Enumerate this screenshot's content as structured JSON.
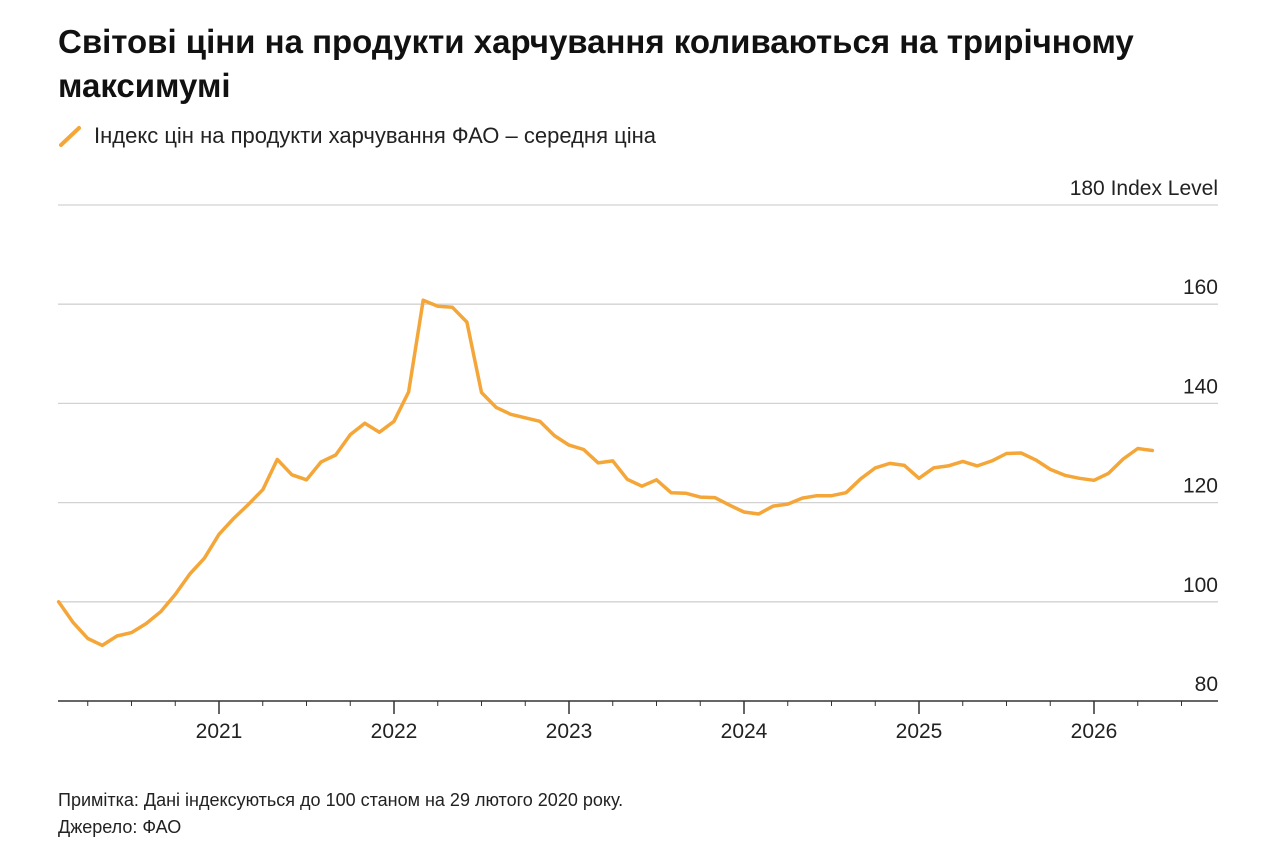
{
  "title": "Світові ціни на продукти харчування коливаються на трирічному максимумі",
  "legend": {
    "label": "Індекс цін на продукти харчування ФАО – середня ціна"
  },
  "colors": {
    "series": "#f5a638",
    "grid": "#d2d2d2",
    "axis": "#333333"
  },
  "footer": {
    "note": "Примітка: Дані індексуються до 100 станом на 29 лютого 2020 року.",
    "source": "Джерело: ФАО"
  },
  "chart_data": {
    "type": "line",
    "title": "Світові ціни на продукти харчування коливаються на трирічному максимумі",
    "ylabel": "",
    "xlabel": "",
    "y_unit_label": "Index Level",
    "ylim": [
      80,
      180
    ],
    "yticks": [
      80,
      100,
      120,
      140,
      160,
      180
    ],
    "ytick_labels": [
      "80",
      "100",
      "120",
      "140",
      "160",
      "180 Index Level"
    ],
    "xlim": [
      "2020-01",
      "2026-10"
    ],
    "xticks": [
      "2021-01",
      "2022-01",
      "2023-01",
      "2024-01",
      "2025-01",
      "2026-01"
    ],
    "xtick_labels": [
      "2021",
      "2022",
      "2023",
      "2024",
      "2025",
      "2026"
    ],
    "grid": true,
    "legend_position": "top-left",
    "series": [
      {
        "name": "Індекс цін на продукти харчування ФАО – середня ціна",
        "x": [
          "2020-02",
          "2020-03",
          "2020-04",
          "2020-05",
          "2020-06",
          "2020-07",
          "2020-08",
          "2020-09",
          "2020-10",
          "2020-11",
          "2020-12",
          "2021-01",
          "2021-02",
          "2021-03",
          "2021-04",
          "2021-05",
          "2021-06",
          "2021-07",
          "2021-08",
          "2021-09",
          "2021-10",
          "2021-11",
          "2021-12",
          "2022-01",
          "2022-02",
          "2022-03",
          "2022-04",
          "2022-05",
          "2022-06",
          "2022-07",
          "2022-08",
          "2022-09",
          "2022-10",
          "2022-11",
          "2022-12",
          "2023-01",
          "2023-02",
          "2023-03",
          "2023-04",
          "2023-05",
          "2023-06",
          "2023-07",
          "2023-08",
          "2023-09",
          "2023-10",
          "2023-11",
          "2023-12",
          "2024-01",
          "2024-02",
          "2024-03",
          "2024-04",
          "2024-05",
          "2024-06",
          "2024-07",
          "2024-08",
          "2024-09",
          "2024-10",
          "2024-11",
          "2024-12",
          "2025-01",
          "2025-02",
          "2025-03",
          "2025-04",
          "2025-05",
          "2025-06",
          "2025-07",
          "2025-08",
          "2025-09",
          "2025-10",
          "2025-11",
          "2025-12",
          "2026-01",
          "2026-02",
          "2026-03",
          "2026-04",
          "2026-05"
        ],
        "values": [
          100,
          95.8,
          92.6,
          91.2,
          93.1,
          93.8,
          95.6,
          98.0,
          101.5,
          105.6,
          108.8,
          113.6,
          116.8,
          119.6,
          122.6,
          128.7,
          125.6,
          124.6,
          128.2,
          129.6,
          133.7,
          136.0,
          134.2,
          136.4,
          142.3,
          160.8,
          159.6,
          159.4,
          156.4,
          142.2,
          139.2,
          137.8,
          137.1,
          136.4,
          133.5,
          131.6,
          130.7,
          128.0,
          128.4,
          124.7,
          123.3,
          124.6,
          122.0,
          121.9,
          121.1,
          121.0,
          119.5,
          118.1,
          117.7,
          119.3,
          119.7,
          120.9,
          121.4,
          121.4,
          122.0,
          124.8,
          127.0,
          127.9,
          127.5,
          124.9,
          127.0,
          127.4,
          128.3,
          127.4,
          128.4,
          129.9,
          130.0,
          128.6,
          126.7,
          125.5,
          124.9,
          124.5,
          125.9,
          128.8,
          130.9,
          130.5
        ]
      }
    ]
  }
}
